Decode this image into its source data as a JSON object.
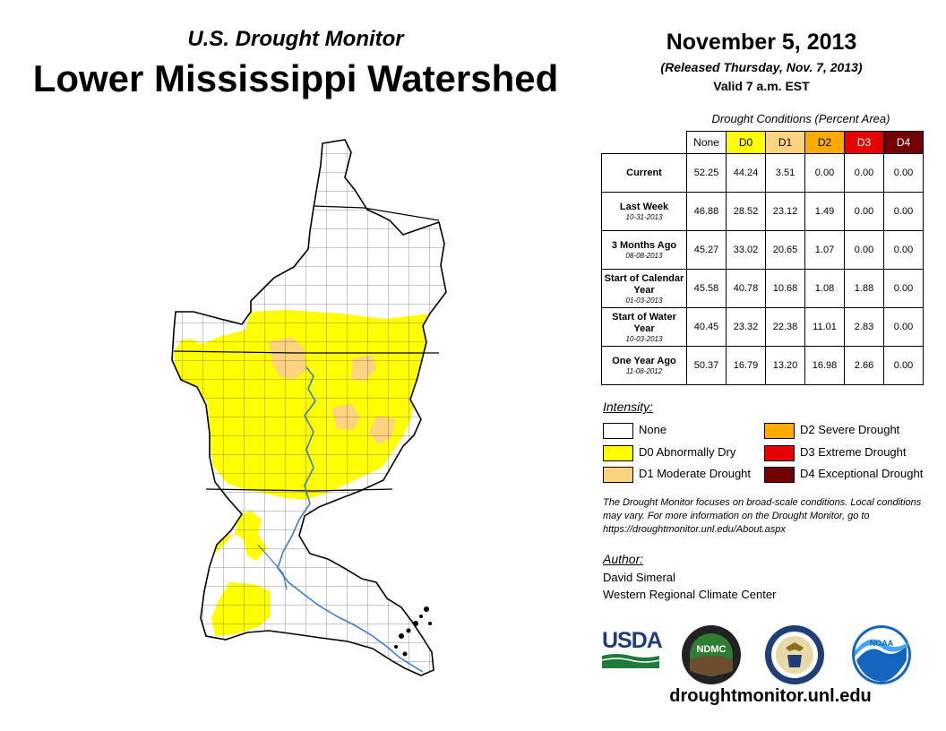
{
  "header": {
    "subtitle": "U.S. Drought Monitor",
    "title": "Lower Mississippi Watershed",
    "date": "November 5, 2013",
    "released": "(Released Thursday, Nov. 7, 2013)",
    "valid": "Valid 7 a.m. EST"
  },
  "table": {
    "caption": "Drought Conditions (Percent Area)",
    "columns": [
      "None",
      "D0",
      "D1",
      "D2",
      "D3",
      "D4"
    ],
    "rows": [
      {
        "label": "Current",
        "date": "",
        "values": [
          "52.25",
          "44.24",
          "3.51",
          "0.00",
          "0.00",
          "0.00"
        ]
      },
      {
        "label": "Last Week",
        "date": "10-31-2013",
        "values": [
          "46.88",
          "28.52",
          "23.12",
          "1.49",
          "0.00",
          "0.00"
        ]
      },
      {
        "label": "3 Months Ago",
        "date": "08-08-2013",
        "values": [
          "45.27",
          "33.02",
          "20.65",
          "1.07",
          "0.00",
          "0.00"
        ]
      },
      {
        "label": "Start of Calendar Year",
        "date": "01-03-2013",
        "values": [
          "45.58",
          "40.78",
          "10.68",
          "1.08",
          "1.88",
          "0.00"
        ]
      },
      {
        "label": "Start of Water Year",
        "date": "10-03-2013",
        "values": [
          "40.45",
          "23.32",
          "22.38",
          "11.01",
          "2.83",
          "0.00"
        ]
      },
      {
        "label": "One Year Ago",
        "date": "11-08-2012",
        "values": [
          "50.37",
          "16.79",
          "13.20",
          "16.98",
          "2.66",
          "0.00"
        ]
      }
    ]
  },
  "legend": {
    "title": "Intensity:",
    "items": [
      {
        "label": "None",
        "color": "#ffffff"
      },
      {
        "label": "D0 Abnormally Dry",
        "color": "#ffff00"
      },
      {
        "label": "D1 Moderate Drought",
        "color": "#fcd37f"
      },
      {
        "label": "D2 Severe Drought",
        "color": "#ffaa00"
      },
      {
        "label": "D3 Extreme Drought",
        "color": "#e60000"
      },
      {
        "label": "D4 Exceptional Drought",
        "color": "#730000"
      }
    ]
  },
  "note": "The Drought Monitor focuses on broad-scale conditions. Local conditions may vary. For more information on the Drought Monitor, go to https://droughtmonitor.unl.edu/About.aspx",
  "author": {
    "label": "Author:",
    "name": "David Simeral",
    "org": "Western Regional Climate Center"
  },
  "logos": {
    "usda": "USDA",
    "ndmc": "NDMC",
    "noaa": "NOAA"
  },
  "url": "droughtmonitor.unl.edu",
  "colors": {
    "river": "#3a7bd5",
    "boundary": "#000000"
  }
}
